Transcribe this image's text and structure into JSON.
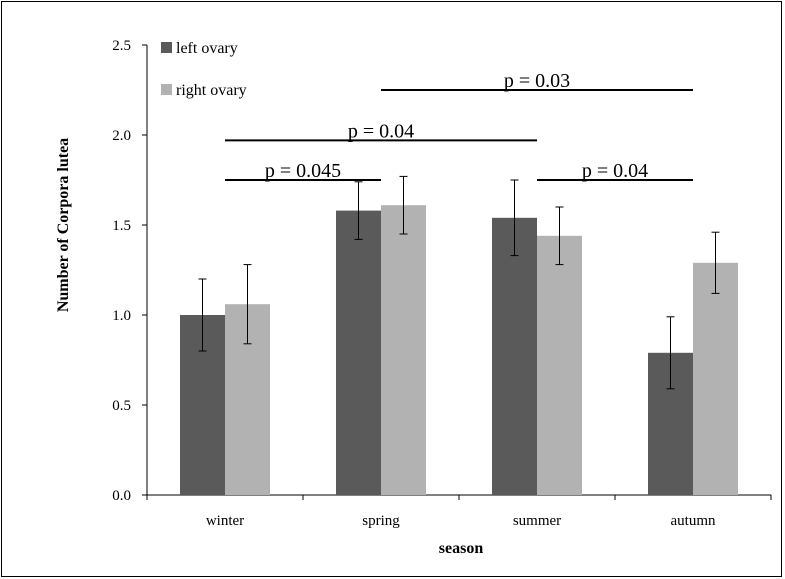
{
  "chart_data": {
    "type": "bar",
    "categories": [
      "winter",
      "spring",
      "summer",
      "autumn"
    ],
    "series": [
      {
        "name": "left ovary",
        "color": "#5a5a5a",
        "values": [
          1.0,
          1.58,
          1.54,
          0.79
        ],
        "errors": [
          0.2,
          0.16,
          0.21,
          0.2
        ]
      },
      {
        "name": "right ovary",
        "color": "#b2b2b2",
        "values": [
          1.06,
          1.61,
          1.44,
          1.29
        ],
        "errors": [
          0.22,
          0.16,
          0.16,
          0.17
        ]
      }
    ],
    "xlabel": "season",
    "ylabel": "Number of Corpora lutea",
    "ylim": [
      0,
      2.5
    ],
    "yticks": [
      "0.0",
      "0.5",
      "1.0",
      "1.5",
      "2.0",
      "2.5"
    ],
    "grid": false,
    "legend_position": "top-left",
    "annotations": [
      {
        "text": "p = 0.045",
        "from": "winter",
        "to": "spring",
        "level": 1.75
      },
      {
        "text": "p = 0.04",
        "from": "winter",
        "to": "summer",
        "level": 1.97
      },
      {
        "text": "p = 0.04",
        "from": "summer",
        "to": "autumn",
        "level": 1.75
      },
      {
        "text": "p = 0.03",
        "from": "spring",
        "to": "autumn",
        "level": 2.25
      }
    ]
  }
}
